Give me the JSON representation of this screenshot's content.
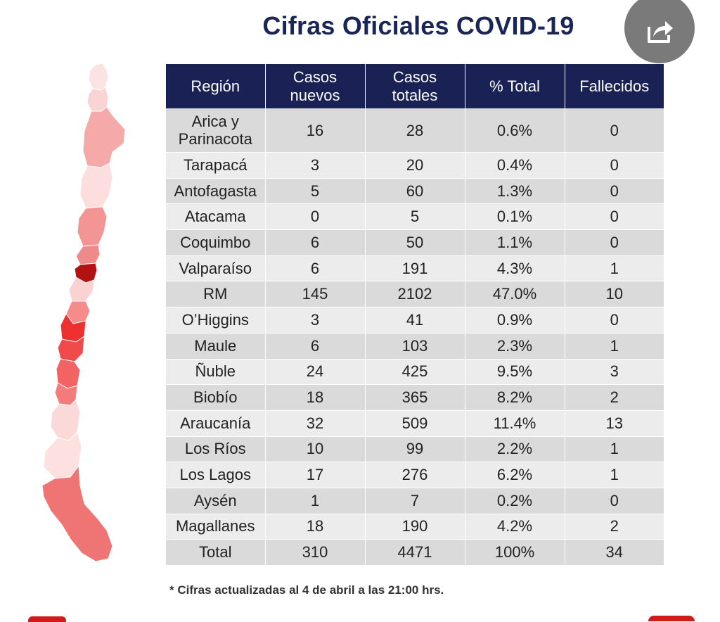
{
  "title": "Cifras Oficiales COVID-19",
  "share_icon": "share-icon",
  "colors": {
    "header_bg": "#1a2255",
    "title_color": "#1a2657",
    "row_odd": "#dadada",
    "row_even": "#ececec",
    "accent_red": "#d11a1a"
  },
  "table": {
    "headers": [
      "Región",
      "Casos\nnuevos",
      "Casos\ntotales",
      "% Total",
      "Fallecidos"
    ],
    "rows": [
      [
        "Arica y\nParinacota",
        "16",
        "28",
        "0.6%",
        "0"
      ],
      [
        "Tarapacá",
        "3",
        "20",
        "0.4%",
        "0"
      ],
      [
        "Antofagasta",
        "5",
        "60",
        "1.3%",
        "0"
      ],
      [
        "Atacama",
        "0",
        "5",
        "0.1%",
        "0"
      ],
      [
        "Coquimbo",
        "6",
        "50",
        "1.1%",
        "0"
      ],
      [
        "Valparaíso",
        "6",
        "191",
        "4.3%",
        "1"
      ],
      [
        "RM",
        "145",
        "2102",
        "47.0%",
        "10"
      ],
      [
        "O’Higgins",
        "3",
        "41",
        "0.9%",
        "0"
      ],
      [
        "Maule",
        "6",
        "103",
        "2.3%",
        "1"
      ],
      [
        "Ñuble",
        "24",
        "425",
        "9.5%",
        "3"
      ],
      [
        "Biobío",
        "18",
        "365",
        "8.2%",
        "2"
      ],
      [
        "Araucanía",
        "32",
        "509",
        "11.4%",
        "13"
      ],
      [
        "Los Ríos",
        "10",
        "99",
        "2.2%",
        "1"
      ],
      [
        "Los Lagos",
        "17",
        "276",
        "6.2%",
        "1"
      ],
      [
        "Aysén",
        "1",
        "7",
        "0.2%",
        "0"
      ],
      [
        "Magallanes",
        "18",
        "190",
        "4.2%",
        "2"
      ],
      [
        "Total",
        "310",
        "4471",
        "100%",
        "34"
      ]
    ]
  },
  "footnote": "* Cifras actualizadas al 4 de abril a las 21:00 hrs."
}
